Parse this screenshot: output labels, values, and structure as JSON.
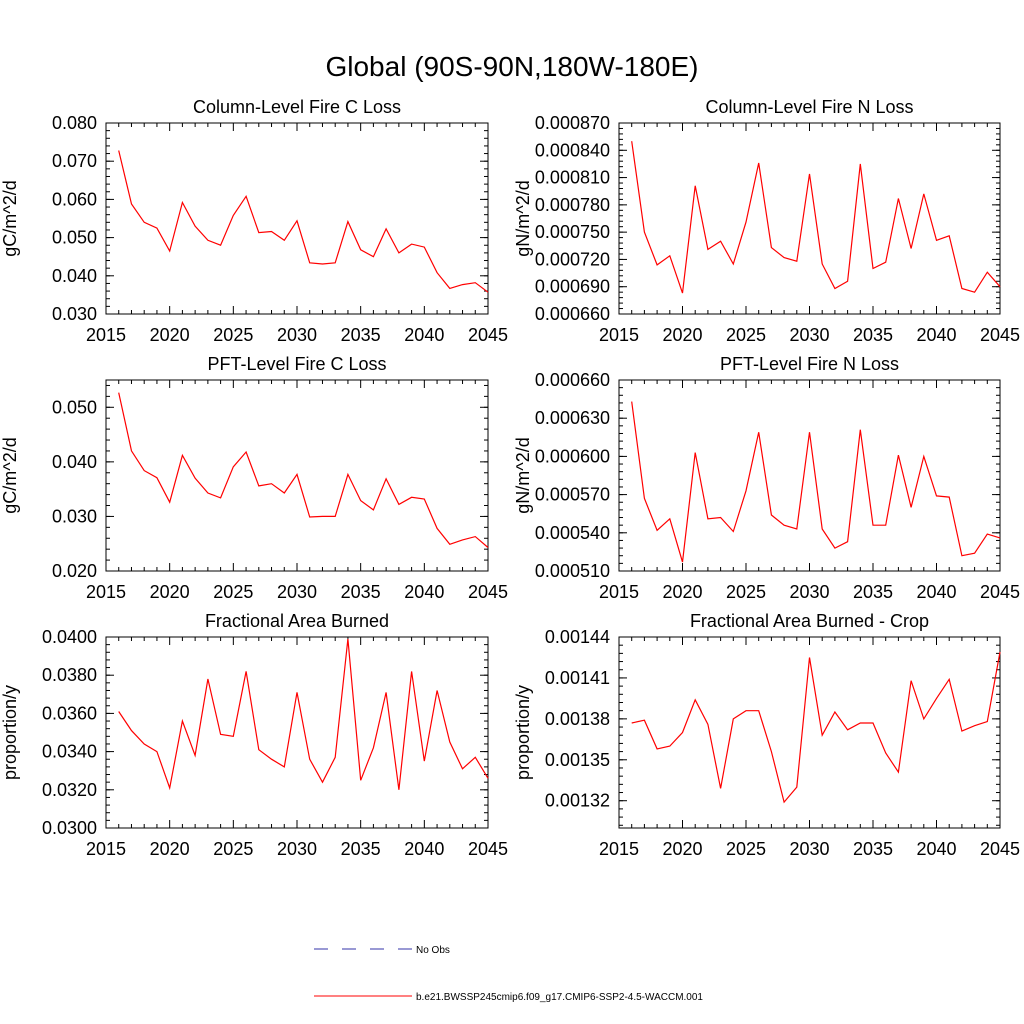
{
  "page_title": "Global (90S-90N,180W-180E)",
  "colors": {
    "series": "#ff0000",
    "obs": "#3333aa",
    "axis": "#000000"
  },
  "legend": {
    "obs_label": "No Obs",
    "model_label": "b.e21.BWSSP245cmip6.f09_g17.CMIP6-SSP2-4.5-WACCM.001"
  },
  "chart_data": [
    {
      "type": "line",
      "title": "Column-Level Fire C Loss",
      "xlabel": "",
      "ylabel": "gC/m^2/d",
      "xlim": [
        2015,
        2045
      ],
      "ylim": [
        0.03,
        0.08
      ],
      "xticks": [
        2015,
        2020,
        2025,
        2030,
        2035,
        2040,
        2045
      ],
      "xtick_labels": [
        "2015",
        "2020",
        "2025",
        "2030",
        "2035",
        "2040",
        "2045"
      ],
      "yticks": [
        0.03,
        0.04,
        0.05,
        0.06,
        0.07,
        0.08
      ],
      "ytick_labels": [
        "0.030",
        "0.040",
        "0.050",
        "0.060",
        "0.070",
        "0.080"
      ],
      "x": [
        2016,
        2017,
        2018,
        2019,
        2020,
        2021,
        2022,
        2023,
        2024,
        2025,
        2026,
        2027,
        2028,
        2029,
        2030,
        2031,
        2032,
        2033,
        2034,
        2035,
        2036,
        2037,
        2038,
        2039,
        2040,
        2041,
        2042,
        2043,
        2044,
        2045
      ],
      "series": [
        {
          "name": "b.e21.BWSSP245cmip6.f09_g17.CMIP6-SSP2-4.5-WACCM.001",
          "values": [
            0.0728,
            0.0588,
            0.054,
            0.0525,
            0.0465,
            0.0592,
            0.053,
            0.0493,
            0.048,
            0.0558,
            0.0608,
            0.0513,
            0.0516,
            0.0493,
            0.0544,
            0.0434,
            0.0431,
            0.0434,
            0.0542,
            0.0468,
            0.045,
            0.0523,
            0.046,
            0.0483,
            0.0475,
            0.0408,
            0.0367,
            0.0377,
            0.0382,
            0.0357
          ]
        }
      ]
    },
    {
      "type": "line",
      "title": "Column-Level Fire N Loss",
      "xlabel": "",
      "ylabel": "gN/m^2/d",
      "xlim": [
        2015,
        2045
      ],
      "ylim": [
        0.00066,
        0.00087
      ],
      "xticks": [
        2015,
        2020,
        2025,
        2030,
        2035,
        2040,
        2045
      ],
      "xtick_labels": [
        "2015",
        "2020",
        "2025",
        "2030",
        "2035",
        "2040",
        "2045"
      ],
      "yticks": [
        0.00066,
        0.00069,
        0.00072,
        0.00075,
        0.00078,
        0.00081,
        0.00084,
        0.00087
      ],
      "ytick_labels": [
        "0.000660",
        "0.000690",
        "0.000720",
        "0.000750",
        "0.000780",
        "0.000810",
        "0.000840",
        "0.000870"
      ],
      "x": [
        2016,
        2017,
        2018,
        2019,
        2020,
        2021,
        2022,
        2023,
        2024,
        2025,
        2026,
        2027,
        2028,
        2029,
        2030,
        2031,
        2032,
        2033,
        2034,
        2035,
        2036,
        2037,
        2038,
        2039,
        2040,
        2041,
        2042,
        2043,
        2044,
        2045
      ],
      "series": [
        {
          "name": "b.e21.BWSSP245cmip6.f09_g17.CMIP6-SSP2-4.5-WACCM.001",
          "values": [
            0.00085,
            0.00075,
            0.000714,
            0.000724,
            0.000683,
            0.000801,
            0.000731,
            0.00074,
            0.000715,
            0.000761,
            0.000826,
            0.000733,
            0.000722,
            0.000718,
            0.000814,
            0.000715,
            0.000688,
            0.000696,
            0.000825,
            0.00071,
            0.000717,
            0.000787,
            0.000732,
            0.000792,
            0.000741,
            0.000746,
            0.000688,
            0.000684,
            0.000706,
            0.00069
          ]
        }
      ]
    },
    {
      "type": "line",
      "title": "PFT-Level Fire C Loss",
      "xlabel": "",
      "ylabel": "gC/m^2/d",
      "xlim": [
        2015,
        2045
      ],
      "ylim": [
        0.02,
        0.055
      ],
      "xticks": [
        2015,
        2020,
        2025,
        2030,
        2035,
        2040,
        2045
      ],
      "xtick_labels": [
        "2015",
        "2020",
        "2025",
        "2030",
        "2035",
        "2040",
        "2045"
      ],
      "yticks": [
        0.02,
        0.03,
        0.04,
        0.05
      ],
      "ytick_labels": [
        "0.020",
        "0.030",
        "0.040",
        "0.050"
      ],
      "x": [
        2016,
        2017,
        2018,
        2019,
        2020,
        2021,
        2022,
        2023,
        2024,
        2025,
        2026,
        2027,
        2028,
        2029,
        2030,
        2031,
        2032,
        2033,
        2034,
        2035,
        2036,
        2037,
        2038,
        2039,
        2040,
        2041,
        2042,
        2043,
        2044,
        2045
      ],
      "series": [
        {
          "name": "b.e21.BWSSP245cmip6.f09_g17.CMIP6-SSP2-4.5-WACCM.001",
          "values": [
            0.0527,
            0.042,
            0.0384,
            0.0371,
            0.0326,
            0.0412,
            0.037,
            0.0343,
            0.0334,
            0.0391,
            0.0418,
            0.0356,
            0.036,
            0.0343,
            0.0377,
            0.0299,
            0.03,
            0.03,
            0.0377,
            0.0329,
            0.0312,
            0.0369,
            0.0322,
            0.0335,
            0.0332,
            0.0278,
            0.0249,
            0.0257,
            0.0263,
            0.0243
          ]
        }
      ]
    },
    {
      "type": "line",
      "title": "PFT-Level Fire N Loss",
      "xlabel": "",
      "ylabel": "gN/m^2/d",
      "xlim": [
        2015,
        2045
      ],
      "ylim": [
        0.00051,
        0.00066
      ],
      "xticks": [
        2015,
        2020,
        2025,
        2030,
        2035,
        2040,
        2045
      ],
      "xtick_labels": [
        "2015",
        "2020",
        "2025",
        "2030",
        "2035",
        "2040",
        "2045"
      ],
      "yticks": [
        0.00051,
        0.00054,
        0.00057,
        0.0006,
        0.00063,
        0.00066
      ],
      "ytick_labels": [
        "0.000510",
        "0.000540",
        "0.000570",
        "0.000600",
        "0.000630",
        "0.000660"
      ],
      "x": [
        2016,
        2017,
        2018,
        2019,
        2020,
        2021,
        2022,
        2023,
        2024,
        2025,
        2026,
        2027,
        2028,
        2029,
        2030,
        2031,
        2032,
        2033,
        2034,
        2035,
        2036,
        2037,
        2038,
        2039,
        2040,
        2041,
        2042,
        2043,
        2044,
        2045
      ],
      "series": [
        {
          "name": "b.e21.BWSSP245cmip6.f09_g17.CMIP6-SSP2-4.5-WACCM.001",
          "values": [
            0.000643,
            0.000567,
            0.000542,
            0.000551,
            0.000517,
            0.000603,
            0.000551,
            0.000552,
            0.000541,
            0.000573,
            0.000619,
            0.000554,
            0.000546,
            0.000543,
            0.000619,
            0.000543,
            0.000528,
            0.000533,
            0.000621,
            0.000546,
            0.000546,
            0.000601,
            0.00056,
            0.0006,
            0.000569,
            0.000568,
            0.000522,
            0.000524,
            0.000539,
            0.000536
          ]
        }
      ]
    },
    {
      "type": "line",
      "title": "Fractional Area Burned",
      "xlabel": "",
      "ylabel": "proportion/y",
      "xlim": [
        2015,
        2045
      ],
      "ylim": [
        0.03,
        0.04
      ],
      "xticks": [
        2015,
        2020,
        2025,
        2030,
        2035,
        2040,
        2045
      ],
      "xtick_labels": [
        "2015",
        "2020",
        "2025",
        "2030",
        "2035",
        "2040",
        "2045"
      ],
      "yticks": [
        0.03,
        0.032,
        0.034,
        0.036,
        0.038,
        0.04
      ],
      "ytick_labels": [
        "0.0300",
        "0.0320",
        "0.0340",
        "0.0360",
        "0.0380",
        "0.0400"
      ],
      "x": [
        2016,
        2017,
        2018,
        2019,
        2020,
        2021,
        2022,
        2023,
        2024,
        2025,
        2026,
        2027,
        2028,
        2029,
        2030,
        2031,
        2032,
        2033,
        2034,
        2035,
        2036,
        2037,
        2038,
        2039,
        2040,
        2041,
        2042,
        2043,
        2044,
        2045
      ],
      "series": [
        {
          "name": "b.e21.BWSSP245cmip6.f09_g17.CMIP6-SSP2-4.5-WACCM.001",
          "values": [
            0.0361,
            0.0351,
            0.0344,
            0.034,
            0.0321,
            0.0356,
            0.0338,
            0.0378,
            0.0349,
            0.0348,
            0.0382,
            0.0341,
            0.0336,
            0.0332,
            0.0371,
            0.0336,
            0.0324,
            0.0337,
            0.0399,
            0.0325,
            0.0342,
            0.0371,
            0.032,
            0.0382,
            0.0335,
            0.0372,
            0.0345,
            0.0331,
            0.0337,
            0.0326
          ]
        }
      ]
    },
    {
      "type": "line",
      "title": "Fractional Area Burned - Crop",
      "xlabel": "",
      "ylabel": "proportion/y",
      "xlim": [
        2015,
        2045
      ],
      "ylim": [
        0.0013,
        0.00144
      ],
      "xticks": [
        2015,
        2020,
        2025,
        2030,
        2035,
        2040,
        2045
      ],
      "xtick_labels": [
        "2015",
        "2020",
        "2025",
        "2030",
        "2035",
        "2040",
        "2045"
      ],
      "yticks": [
        0.00132,
        0.00135,
        0.00138,
        0.00141,
        0.00144
      ],
      "ytick_labels": [
        "0.00132",
        "0.00135",
        "0.00138",
        "0.00141",
        "0.00144"
      ],
      "x": [
        2016,
        2017,
        2018,
        2019,
        2020,
        2021,
        2022,
        2023,
        2024,
        2025,
        2026,
        2027,
        2028,
        2029,
        2030,
        2031,
        2032,
        2033,
        2034,
        2035,
        2036,
        2037,
        2038,
        2039,
        2040,
        2041,
        2042,
        2043,
        2044,
        2045
      ],
      "series": [
        {
          "name": "b.e21.BWSSP245cmip6.f09_g17.CMIP6-SSP2-4.5-WACCM.001",
          "values": [
            0.001377,
            0.001379,
            0.001358,
            0.00136,
            0.00137,
            0.001394,
            0.001376,
            0.001329,
            0.00138,
            0.001386,
            0.001386,
            0.001356,
            0.001319,
            0.00133,
            0.001425,
            0.001368,
            0.001385,
            0.001372,
            0.001377,
            0.001377,
            0.001355,
            0.001341,
            0.001408,
            0.00138,
            0.001395,
            0.001409,
            0.001371,
            0.001375,
            0.001378,
            0.001429
          ]
        }
      ]
    }
  ]
}
